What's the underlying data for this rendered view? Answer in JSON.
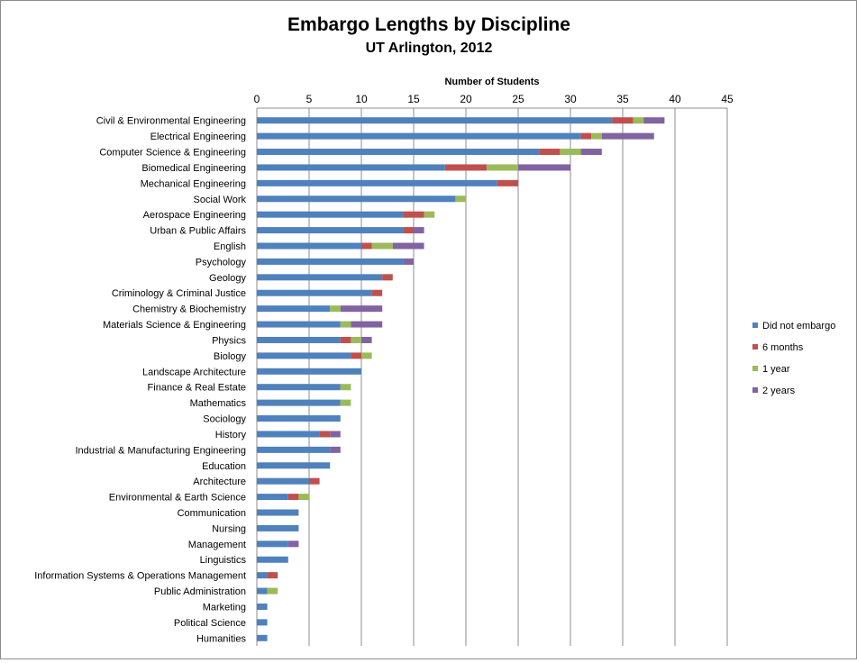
{
  "chart_data": {
    "type": "bar",
    "orientation": "horizontal",
    "stacked": true,
    "title": "Embargo Lengths by Discipline",
    "subtitle": "UT Arlington, 2012",
    "xlabel": "Number of Students",
    "ylabel": "",
    "xlim": [
      0,
      45
    ],
    "xticks": [
      0,
      5,
      10,
      15,
      20,
      25,
      30,
      35,
      40,
      45
    ],
    "grid": true,
    "legend": "right",
    "categories": [
      "Civil & Environmental Engineering",
      "Electrical Engineering",
      "Computer Science & Engineering",
      "Biomedical Engineering",
      "Mechanical Engineering",
      "Social Work",
      "Aerospace Engineering",
      "Urban & Public Affairs",
      "English",
      "Psychology",
      "Geology",
      "Criminology & Criminal Justice",
      "Chemistry & Biochemistry",
      "Materials Science & Engineering",
      "Physics",
      "Biology",
      "Landscape Architecture",
      "Finance & Real Estate",
      "Mathematics",
      "Sociology",
      "History",
      "Industrial & Manufacturing Engineering",
      "Education",
      "Architecture",
      "Environmental & Earth Science",
      "Communication",
      "Nursing",
      "Management",
      "Linguistics",
      "Information Systems & Operations Management",
      "Public Administration",
      "Marketing",
      "Political Science",
      "Humanities"
    ],
    "series": [
      {
        "name": "Did not embargo",
        "color": "#4F81BD",
        "values": [
          34,
          31,
          27,
          18,
          23,
          19,
          14,
          14,
          10,
          14,
          12,
          11,
          7,
          8,
          8,
          9,
          10,
          8,
          8,
          8,
          6,
          7,
          7,
          5,
          3,
          4,
          4,
          3,
          3,
          1,
          1,
          1,
          1,
          1
        ]
      },
      {
        "name": "6 months",
        "color": "#C0504D",
        "values": [
          2,
          1,
          2,
          4,
          2,
          0,
          2,
          1,
          1,
          0,
          1,
          1,
          0,
          0,
          1,
          1,
          0,
          0,
          0,
          0,
          1,
          0,
          0,
          1,
          1,
          0,
          0,
          0,
          0,
          1,
          0,
          0,
          0,
          0
        ]
      },
      {
        "name": "1 year",
        "color": "#9BBB59",
        "values": [
          1,
          1,
          2,
          3,
          0,
          1,
          1,
          0,
          2,
          0,
          0,
          0,
          1,
          1,
          1,
          1,
          0,
          1,
          1,
          0,
          0,
          0,
          0,
          0,
          1,
          0,
          0,
          0,
          0,
          0,
          1,
          0,
          0,
          0
        ]
      },
      {
        "name": "2 years",
        "color": "#8064A2",
        "values": [
          2,
          5,
          2,
          5,
          0,
          0,
          0,
          1,
          3,
          1,
          0,
          0,
          4,
          3,
          1,
          0,
          0,
          0,
          0,
          0,
          1,
          1,
          0,
          0,
          0,
          0,
          0,
          1,
          0,
          0,
          0,
          0,
          0,
          0
        ]
      }
    ]
  }
}
